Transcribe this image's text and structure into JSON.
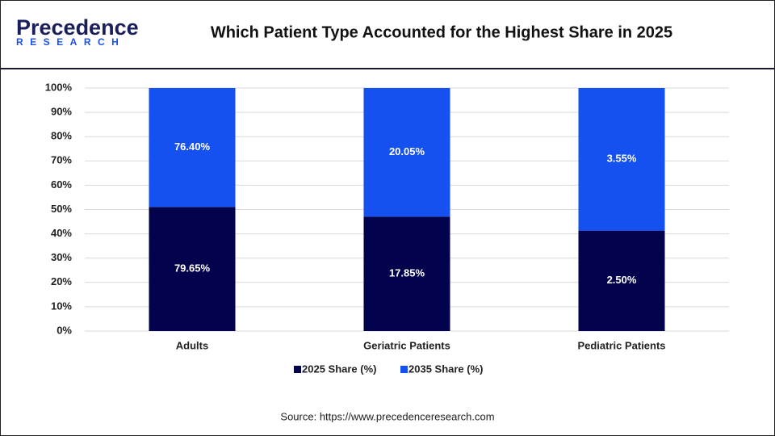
{
  "logo": {
    "name": "Precedence",
    "tagline": "RESEARCH"
  },
  "chart_data": {
    "type": "bar",
    "stacking": "percent",
    "title": "Which Patient Type Accounted for the Highest Share in 2025",
    "categories": [
      "Adults",
      "Geriatric Patients",
      "Pediatric Patients"
    ],
    "series": [
      {
        "name": "2025 Share (%)",
        "color": "#03034d",
        "values": [
          79.65,
          17.85,
          2.5
        ],
        "value_labels": [
          "79.65%",
          "17.85%",
          "2.50%"
        ]
      },
      {
        "name": "2035 Share (%)",
        "color": "#1550f0",
        "values": [
          76.4,
          20.05,
          3.55
        ],
        "value_labels": [
          "76.40%",
          "20.05%",
          "3.55%"
        ]
      }
    ],
    "ylim": [
      0,
      100
    ],
    "yticks": [
      {
        "value": 0,
        "label": "0%"
      },
      {
        "value": 10,
        "label": "10%"
      },
      {
        "value": 20,
        "label": "20%"
      },
      {
        "value": 30,
        "label": "30%"
      },
      {
        "value": 40,
        "label": "40%"
      },
      {
        "value": 50,
        "label": "50%"
      },
      {
        "value": 60,
        "label": "60%"
      },
      {
        "value": 70,
        "label": "70%"
      },
      {
        "value": 80,
        "label": "80%"
      },
      {
        "value": 90,
        "label": "90%"
      },
      {
        "value": 100,
        "label": "100%"
      }
    ],
    "grid": true,
    "legend": "bottom",
    "source": "Source: https://www.precedenceresearch.com"
  }
}
